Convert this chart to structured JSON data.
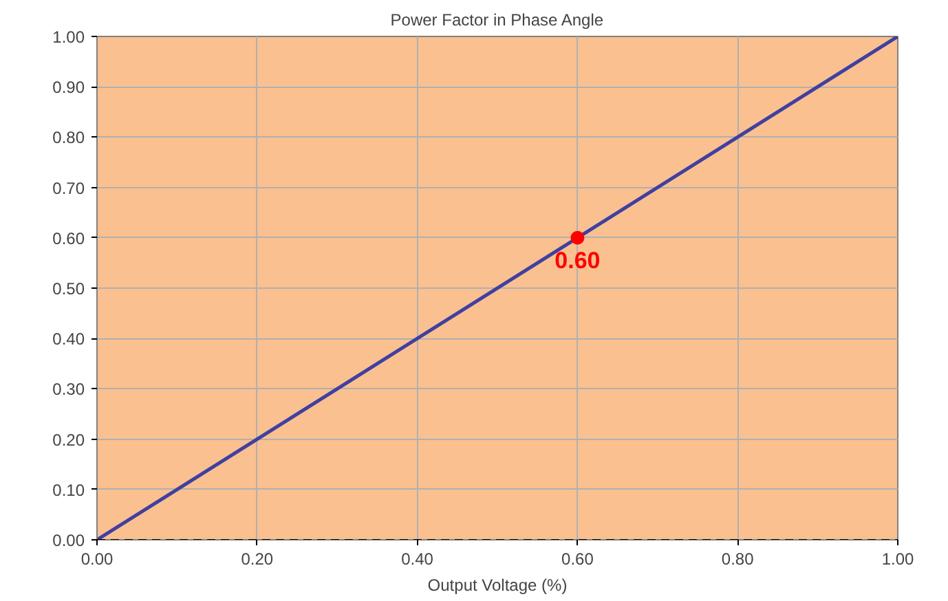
{
  "chart_data": {
    "type": "line",
    "title": "Power Factor in Phase Angle",
    "xlabel": "Output Voltage (%)",
    "series": [
      {
        "color": "#4040a0",
        "x": [
          0,
          1
        ],
        "values": [
          0,
          1
        ]
      },
      {
        "type": "scatter",
        "color": "#ff0000",
        "x": [
          0.6
        ],
        "values": [
          0.6
        ],
        "value_labels": [
          "0.60"
        ],
        "marker": "circle"
      }
    ],
    "xlim": [
      0,
      1
    ],
    "ylim": [
      0,
      1
    ],
    "xticks": [
      {
        "value": 0,
        "label": "0.00"
      },
      {
        "value": 0.2,
        "label": "0.20"
      },
      {
        "value": 0.4,
        "label": "0.40"
      },
      {
        "value": 0.6,
        "label": "0.60"
      },
      {
        "value": 0.8,
        "label": "0.80"
      },
      {
        "value": 1,
        "label": "1.00"
      }
    ],
    "yticks": [
      {
        "value": 0,
        "label": "0.00"
      },
      {
        "value": 0.1,
        "label": "0.10"
      },
      {
        "value": 0.2,
        "label": "0.20"
      },
      {
        "value": 0.3,
        "label": "0.30"
      },
      {
        "value": 0.4,
        "label": "0.40"
      },
      {
        "value": 0.5,
        "label": "0.50"
      },
      {
        "value": 0.6,
        "label": "0.60"
      },
      {
        "value": 0.7,
        "label": "0.70"
      },
      {
        "value": 0.8,
        "label": "0.80"
      },
      {
        "value": 0.9,
        "label": "0.90"
      },
      {
        "value": 1,
        "label": "1.00"
      }
    ],
    "ref_lines": [
      {
        "axis": "y",
        "value": 0,
        "label": null,
        "color": "#000000",
        "line_style": "dashed"
      }
    ],
    "grid": true
  }
}
